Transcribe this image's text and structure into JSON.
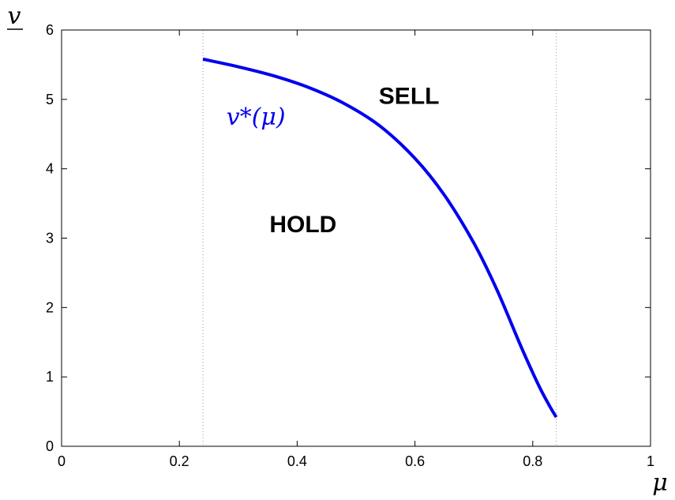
{
  "chart_data": {
    "type": "line",
    "xlabel": "μ",
    "ylabel": "v",
    "xlim": [
      0,
      1
    ],
    "ylim": [
      0,
      6
    ],
    "xticks": [
      0,
      0.2,
      0.4,
      0.6,
      0.8,
      1
    ],
    "xtick_labels": [
      "0",
      "0.2",
      "0.4",
      "0.6",
      "0.8",
      "1"
    ],
    "yticks": [
      0,
      1,
      2,
      3,
      4,
      5,
      6
    ],
    "ytick_labels": [
      "0",
      "1",
      "2",
      "3",
      "4",
      "5",
      "6"
    ],
    "grid": false,
    "vertical_reference_lines": [
      0.24,
      0.84
    ],
    "series": [
      {
        "name": "v*(μ)",
        "color": "#0000ee",
        "x": [
          0.24,
          0.3,
          0.36,
          0.42,
          0.48,
          0.54,
          0.6,
          0.65,
          0.7,
          0.74,
          0.78,
          0.81,
          0.83,
          0.84
        ],
        "y": [
          5.58,
          5.47,
          5.34,
          5.17,
          4.94,
          4.62,
          4.15,
          3.62,
          2.93,
          2.24,
          1.44,
          0.88,
          0.56,
          0.42
        ]
      }
    ],
    "annotations": [
      {
        "text": "SELL",
        "x": 0.59,
        "y": 5.05
      },
      {
        "text": "HOLD",
        "x": 0.41,
        "y": 3.2
      },
      {
        "text": "v*(μ)",
        "x": 0.33,
        "y": 4.75,
        "color": "#0000ee"
      }
    ]
  }
}
